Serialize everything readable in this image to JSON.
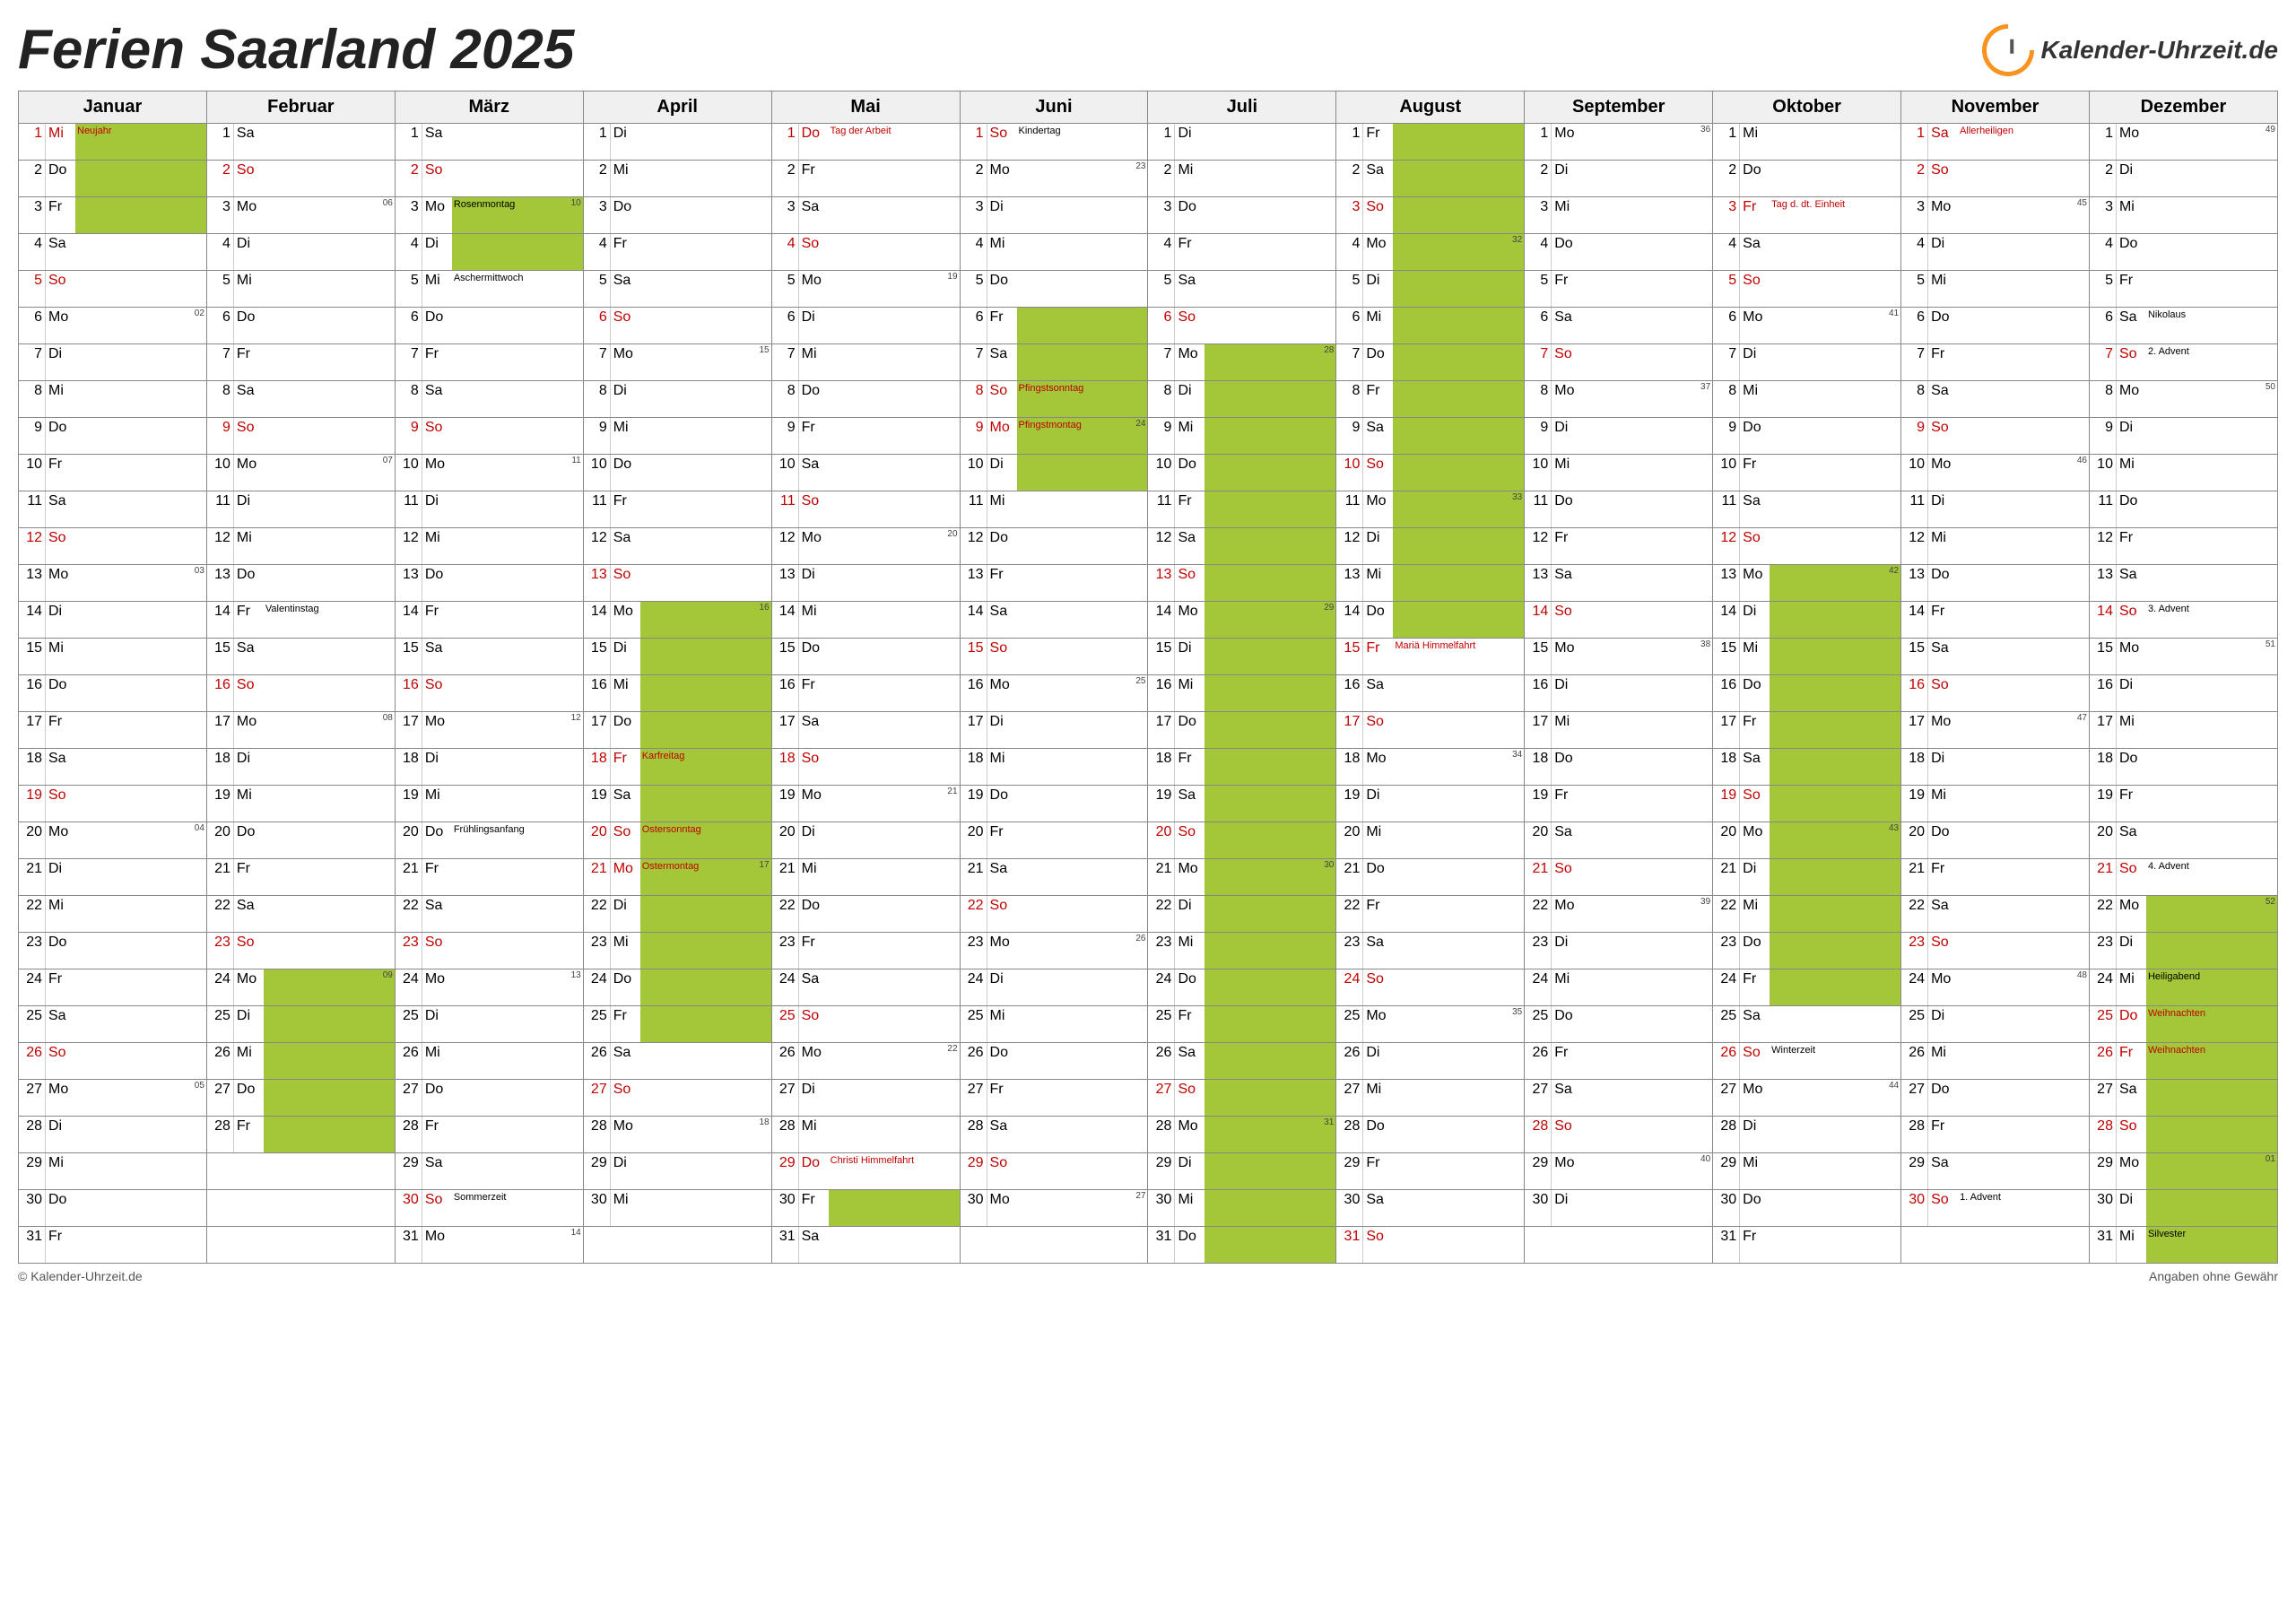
{
  "title": "Ferien Saarland 2025",
  "logo": "Kalender-Uhrzeit.de",
  "footer_left": "© Kalender-Uhrzeit.de",
  "footer_right": "Angaben ohne Gewähr",
  "colors": {
    "vacation": "#a4c639",
    "sunday": "#bfbfbf",
    "saturday": "#e2e2f2",
    "holiday_text": "#c00000",
    "border": "#888888",
    "bg": "#ffffff"
  },
  "months": [
    "Januar",
    "Februar",
    "März",
    "April",
    "Mai",
    "Juni",
    "Juli",
    "August",
    "September",
    "Oktober",
    "November",
    "Dezember"
  ],
  "weekdays": [
    "Mo",
    "Di",
    "Mi",
    "Do",
    "Fr",
    "Sa",
    "So"
  ],
  "start_dow": [
    2,
    5,
    5,
    1,
    3,
    6,
    1,
    4,
    0,
    2,
    5,
    0
  ],
  "days_in_month": [
    31,
    28,
    31,
    30,
    31,
    30,
    31,
    31,
    30,
    31,
    30,
    31
  ],
  "holidays": {
    "1-1": "Neujahr",
    "4-18": "Karfreitag",
    "4-20": "Ostersonntag",
    "4-21": "Ostermontag",
    "5-1": "Tag der Arbeit",
    "5-29": "Christi Himmelfahrt",
    "6-8": "Pfingstsonntag",
    "6-9": "Pfingstmontag",
    "8-15": "Mariä Himmelfahrt",
    "10-3": "Tag d. dt. Einheit",
    "11-1": "Allerheiligen",
    "12-25": "Weihnachten",
    "12-26": "Weihnachten"
  },
  "notes": {
    "2-14": "Valentinstag",
    "3-3": "Rosenmontag",
    "3-5": "Aschermittwoch",
    "3-20": "Frühlingsanfang",
    "3-30": "Sommerzeit",
    "6-1": "Kindertag",
    "10-26": "Winterzeit",
    "11-30": "1. Advent",
    "12-6": "Nikolaus",
    "12-7": "2. Advent",
    "12-14": "3. Advent",
    "12-21": "4. Advent",
    "12-24": "Heiligabend",
    "12-31": "Silvester"
  },
  "week_numbers": {
    "1-6": "02",
    "1-13": "03",
    "1-20": "04",
    "1-27": "05",
    "2-3": "06",
    "2-10": "07",
    "2-17": "08",
    "2-24": "09",
    "3-3": "10",
    "3-10": "11",
    "3-17": "12",
    "3-24": "13",
    "3-31": "14",
    "4-7": "15",
    "4-14": "16",
    "4-21": "17",
    "4-28": "18",
    "5-5": "19",
    "5-12": "20",
    "5-19": "21",
    "5-26": "22",
    "6-2": "23",
    "6-9": "24",
    "6-16": "25",
    "6-23": "26",
    "6-30": "27",
    "7-7": "28",
    "7-14": "29",
    "7-21": "30",
    "7-28": "31",
    "8-4": "32",
    "8-11": "33",
    "8-18": "34",
    "8-25": "35",
    "9-1": "36",
    "9-8": "37",
    "9-15": "38",
    "9-22": "39",
    "9-29": "40",
    "10-6": "41",
    "10-13": "42",
    "10-20": "43",
    "10-27": "44",
    "11-3": "45",
    "11-10": "46",
    "11-17": "47",
    "11-24": "48",
    "12-1": "49",
    "12-8": "50",
    "12-15": "51",
    "12-22": "52",
    "12-29": "01"
  },
  "vacations": [
    {
      "m": 1,
      "from": 1,
      "to": 3
    },
    {
      "m": 2,
      "from": 24,
      "to": 28
    },
    {
      "m": 3,
      "from": 3,
      "to": 4
    },
    {
      "m": 4,
      "from": 14,
      "to": 25
    },
    {
      "m": 5,
      "from": 30,
      "to": 30
    },
    {
      "m": 6,
      "from": 6,
      "to": 10
    },
    {
      "m": 7,
      "from": 7,
      "to": 31
    },
    {
      "m": 8,
      "from": 1,
      "to": 14
    },
    {
      "m": 10,
      "from": 13,
      "to": 24
    },
    {
      "m": 12,
      "from": 22,
      "to": 31
    }
  ]
}
